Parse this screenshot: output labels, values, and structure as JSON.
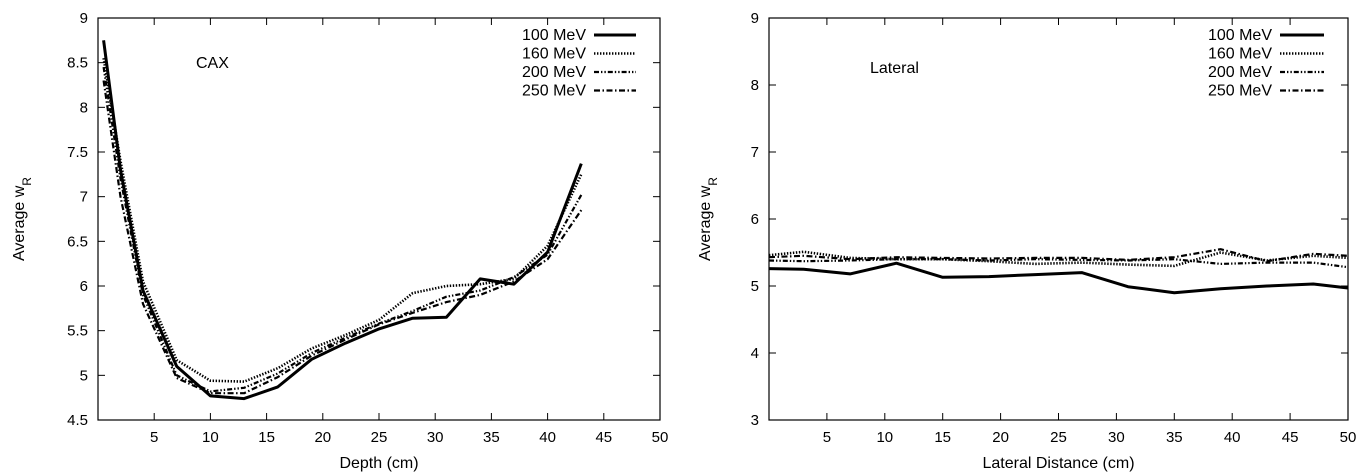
{
  "chart_data": [
    {
      "type": "line",
      "annotation": "CAX",
      "xlabel": "Depth (cm)",
      "ylabel_base": "Average w",
      "ylabel_sub": "R",
      "xlim": [
        0,
        50
      ],
      "ylim": [
        4.5,
        9
      ],
      "xticks": [
        5,
        10,
        15,
        20,
        25,
        30,
        35,
        40,
        45,
        50
      ],
      "yticks": [
        4.5,
        5,
        5.5,
        6,
        6.5,
        7,
        7.5,
        8,
        8.5,
        9
      ],
      "ytick_labels": [
        "4.5",
        "5",
        "5.5",
        "6",
        "6.5",
        "7",
        "7.5",
        "8",
        "8.5",
        "9"
      ],
      "grid": false,
      "legend_position": "top-right",
      "series": [
        {
          "name": "100 MeV",
          "style": "solid",
          "x": [
            0.5,
            2,
            4,
            7,
            10,
            13,
            16,
            19,
            22,
            25,
            28,
            31,
            34,
            37,
            40,
            43
          ],
          "y": [
            8.75,
            7.3,
            5.95,
            5.1,
            4.77,
            4.74,
            4.87,
            5.18,
            5.36,
            5.52,
            5.64,
            5.65,
            6.08,
            6.02,
            6.38,
            7.37
          ]
        },
        {
          "name": "160 MeV",
          "style": "dotted",
          "x": [
            0.5,
            2,
            4,
            7,
            10,
            13,
            16,
            19,
            22,
            25,
            28,
            31,
            34,
            37,
            40,
            43
          ],
          "y": [
            8.55,
            7.4,
            6.05,
            5.17,
            4.94,
            4.93,
            5.08,
            5.3,
            5.45,
            5.62,
            5.92,
            6.0,
            6.02,
            6.08,
            6.45,
            7.25
          ]
        },
        {
          "name": "200 MeV",
          "style": "dash-dot-dot",
          "x": [
            0.5,
            2,
            4,
            7,
            10,
            13,
            16,
            19,
            22,
            25,
            28,
            31,
            34,
            37,
            40,
            43
          ],
          "y": [
            8.45,
            7.2,
            5.9,
            5.0,
            4.82,
            4.86,
            5.02,
            5.25,
            5.42,
            5.58,
            5.72,
            5.88,
            5.95,
            6.1,
            6.35,
            7.02
          ]
        },
        {
          "name": "250 MeV",
          "style": "dash-dot",
          "x": [
            0.5,
            2,
            4,
            7,
            10,
            13,
            16,
            19,
            22,
            25,
            28,
            31,
            34,
            37,
            40,
            43
          ],
          "y": [
            8.3,
            7.0,
            5.8,
            4.97,
            4.8,
            4.8,
            4.98,
            5.22,
            5.4,
            5.57,
            5.7,
            5.82,
            5.9,
            6.05,
            6.3,
            6.85
          ]
        }
      ]
    },
    {
      "type": "line",
      "annotation": "Lateral",
      "xlabel": "Lateral Distance (cm)",
      "ylabel_base": "Average w",
      "ylabel_sub": "R",
      "xlim": [
        0,
        50
      ],
      "ylim": [
        3,
        9
      ],
      "xticks": [
        5,
        10,
        15,
        20,
        25,
        30,
        35,
        40,
        45,
        50
      ],
      "yticks": [
        3,
        4,
        5,
        6,
        7,
        8,
        9
      ],
      "ytick_labels": [
        "3",
        "4",
        "5",
        "6",
        "7",
        "8",
        "9"
      ],
      "grid": false,
      "legend_position": "top-right",
      "series": [
        {
          "name": "100 MeV",
          "style": "solid",
          "x": [
            0,
            3,
            7,
            11,
            15,
            19,
            23,
            27,
            31,
            35,
            39,
            43,
            47,
            50
          ],
          "y": [
            5.26,
            5.25,
            5.18,
            5.34,
            5.13,
            5.14,
            5.17,
            5.2,
            4.99,
            4.9,
            4.96,
            5.0,
            5.03,
            4.97
          ]
        },
        {
          "name": "160 MeV",
          "style": "dotted",
          "x": [
            0,
            3,
            7,
            11,
            15,
            19,
            23,
            27,
            31,
            35,
            39,
            43,
            47,
            50
          ],
          "y": [
            5.46,
            5.51,
            5.42,
            5.4,
            5.4,
            5.37,
            5.33,
            5.35,
            5.32,
            5.3,
            5.5,
            5.38,
            5.45,
            5.42
          ]
        },
        {
          "name": "200 MeV",
          "style": "dash-dot-dot",
          "x": [
            0,
            3,
            7,
            11,
            15,
            19,
            23,
            27,
            31,
            35,
            39,
            43,
            47,
            50
          ],
          "y": [
            5.38,
            5.37,
            5.38,
            5.4,
            5.4,
            5.38,
            5.4,
            5.39,
            5.38,
            5.4,
            5.33,
            5.35,
            5.35,
            5.28
          ]
        },
        {
          "name": "250 MeV",
          "style": "dash-dot",
          "x": [
            0,
            3,
            7,
            11,
            15,
            19,
            23,
            27,
            31,
            35,
            39,
            43,
            47,
            50
          ],
          "y": [
            5.43,
            5.45,
            5.4,
            5.43,
            5.42,
            5.41,
            5.42,
            5.42,
            5.39,
            5.43,
            5.55,
            5.37,
            5.48,
            5.45
          ]
        }
      ]
    }
  ]
}
